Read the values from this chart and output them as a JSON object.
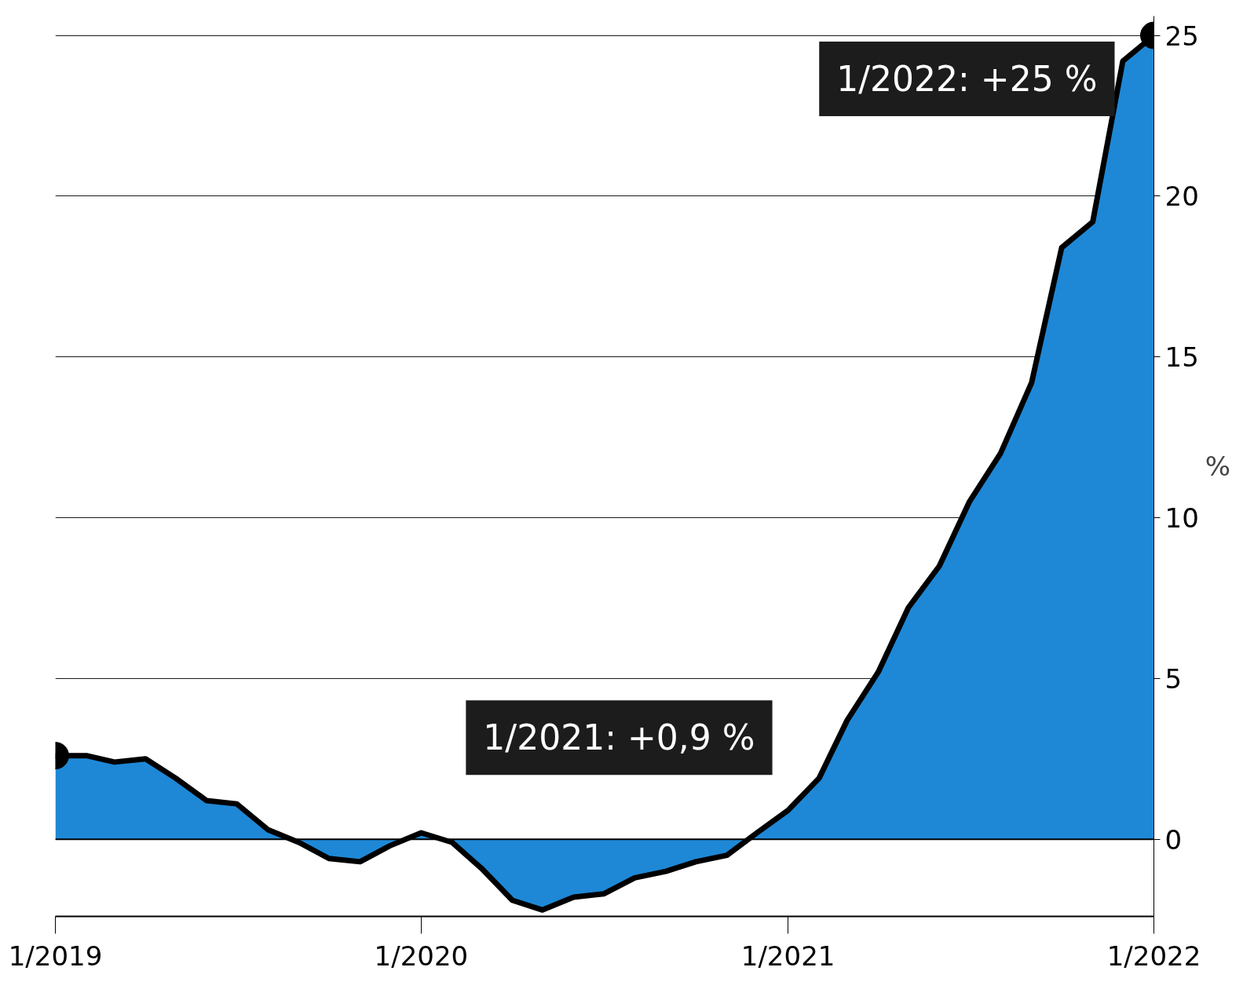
{
  "chart_data": {
    "type": "area",
    "ylabel": "%",
    "x": [
      "2019-01",
      "2019-02",
      "2019-03",
      "2019-04",
      "2019-05",
      "2019-06",
      "2019-07",
      "2019-08",
      "2019-09",
      "2019-10",
      "2019-11",
      "2019-12",
      "2020-01",
      "2020-02",
      "2020-03",
      "2020-04",
      "2020-05",
      "2020-06",
      "2020-07",
      "2020-08",
      "2020-09",
      "2020-10",
      "2020-11",
      "2020-12",
      "2021-01",
      "2021-02",
      "2021-03",
      "2021-04",
      "2021-05",
      "2021-06",
      "2021-07",
      "2021-08",
      "2021-09",
      "2021-10",
      "2021-11",
      "2021-12",
      "2022-01"
    ],
    "series": [
      {
        "color": "#1e88d6",
        "values": [
          2.6,
          2.6,
          2.4,
          2.5,
          1.9,
          1.2,
          1.1,
          0.3,
          -0.1,
          -0.6,
          -0.7,
          -0.2,
          0.2,
          -0.1,
          -0.9,
          -1.9,
          -2.2,
          -1.8,
          -1.7,
          -1.2,
          -1.0,
          -0.7,
          -0.5,
          0.2,
          0.9,
          1.9,
          3.7,
          5.2,
          7.2,
          8.5,
          10.5,
          12.0,
          14.2,
          18.4,
          19.2,
          24.2,
          25.0
        ]
      },
      {
        "type": "scatter",
        "x": [
          "2019-01",
          "2022-01"
        ],
        "color": "#000000",
        "marker": "circle",
        "values": [
          2.6,
          25.0
        ]
      }
    ],
    "ref_lines": [
      {
        "axis": "y",
        "value": 0,
        "color": "#000000"
      }
    ],
    "xlim": [
      "2019-01",
      "2022-01"
    ],
    "xticks": [
      {
        "value": "2019-01",
        "label": "1/2019"
      },
      {
        "value": "2020-01",
        "label": "1/2020"
      },
      {
        "value": "2021-01",
        "label": "1/2021"
      },
      {
        "value": "2022-01",
        "label": "1/2022"
      }
    ],
    "ylim": [
      -2.4,
      25.6
    ],
    "yticks": [
      0,
      5,
      10,
      15,
      20,
      25
    ],
    "grid": "y",
    "annotations": [
      {
        "text": "1/2021: +0,9 %",
        "x": "2021-01",
        "y": 0.9
      },
      {
        "text": "1/2022: +25 %",
        "x": "2022-01",
        "y": 25
      }
    ]
  }
}
